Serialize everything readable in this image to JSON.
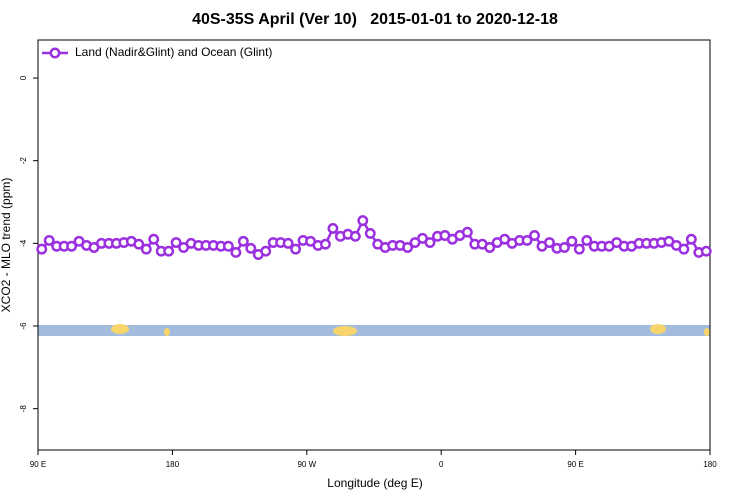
{
  "chart_data": {
    "type": "line",
    "title": "40S-35S April (Ver 10)   2015-01-01 to 2020-12-18",
    "xlabel": "Longitude (deg E)",
    "ylabel": "XCO2 - MLO trend (ppm)",
    "xlim": [
      90,
      540
    ],
    "xticks": [
      {
        "value": 90,
        "label": "90 E"
      },
      {
        "value": 180,
        "label": "180"
      },
      {
        "value": 270,
        "label": "90 W"
      },
      {
        "value": 360,
        "label": "0"
      },
      {
        "value": 450,
        "label": "90 E"
      },
      {
        "value": 540,
        "label": "180"
      }
    ],
    "ylim": [
      -9,
      0.92
    ],
    "yticks": [
      0,
      -2,
      -4,
      -6,
      -8
    ],
    "legend": "upper left",
    "x": [
      92.5,
      97.5,
      102.5,
      107.5,
      112.5,
      117.5,
      122.5,
      127.5,
      132.5,
      137.5,
      142.5,
      147.5,
      152.5,
      157.5,
      162.5,
      167.5,
      172.5,
      177.5,
      182.5,
      187.5,
      192.5,
      197.5,
      202.5,
      207.5,
      212.5,
      217.5,
      222.5,
      227.5,
      232.5,
      237.5,
      242.5,
      247.5,
      252.5,
      257.5,
      262.5,
      267.5,
      272.5,
      277.5,
      282.5,
      287.5,
      292.5,
      297.5,
      302.5,
      307.5,
      312.5,
      317.5,
      322.5,
      327.5,
      332.5,
      337.5,
      342.5,
      347.5,
      352.5,
      357.5,
      362.5,
      367.5,
      372.5,
      377.5,
      382.5,
      387.5,
      392.5,
      397.5,
      402.5,
      407.5,
      412.5,
      417.5,
      422.5,
      427.5,
      432.5,
      437.5,
      442.5,
      447.5,
      452.5,
      457.5,
      462.5,
      467.5,
      472.5,
      477.5,
      482.5,
      487.5,
      492.5,
      497.5,
      502.5,
      507.5,
      512.5,
      517.5,
      522.5,
      527.5,
      532.5,
      537.5
    ],
    "series": [
      {
        "name": "Land (Nadir&Glint) and Ocean (Glint)",
        "color": "#9b30e0",
        "values": [
          -4.14,
          -3.93,
          -4.07,
          -4.07,
          -4.07,
          -3.95,
          -4.05,
          -4.1,
          -4.0,
          -4.0,
          -4.0,
          -3.98,
          -3.95,
          -4.02,
          -4.14,
          -3.9,
          -4.19,
          -4.19,
          -3.98,
          -4.1,
          -4.0,
          -4.05,
          -4.05,
          -4.05,
          -4.07,
          -4.07,
          -4.22,
          -3.95,
          -4.12,
          -4.27,
          -4.19,
          -3.98,
          -3.98,
          -4.0,
          -4.14,
          -3.93,
          -3.95,
          -4.05,
          -4.02,
          -3.64,
          -3.83,
          -3.78,
          -3.83,
          -3.45,
          -3.76,
          -4.02,
          -4.1,
          -4.05,
          -4.05,
          -4.1,
          -3.98,
          -3.88,
          -3.98,
          -3.83,
          -3.81,
          -3.9,
          -3.81,
          -3.73,
          -4.02,
          -4.02,
          -4.1,
          -3.98,
          -3.9,
          -4.0,
          -3.93,
          -3.93,
          -3.81,
          -4.07,
          -3.98,
          -4.12,
          -4.1,
          -3.95,
          -4.14,
          -3.93,
          -4.07,
          -4.07,
          -4.07,
          -3.98,
          -4.07,
          -4.07,
          -4.0,
          -4.0,
          -4.0,
          -3.98,
          -3.95,
          -4.05,
          -4.14,
          -3.9,
          -4.22,
          -4.19
        ]
      }
    ]
  }
}
